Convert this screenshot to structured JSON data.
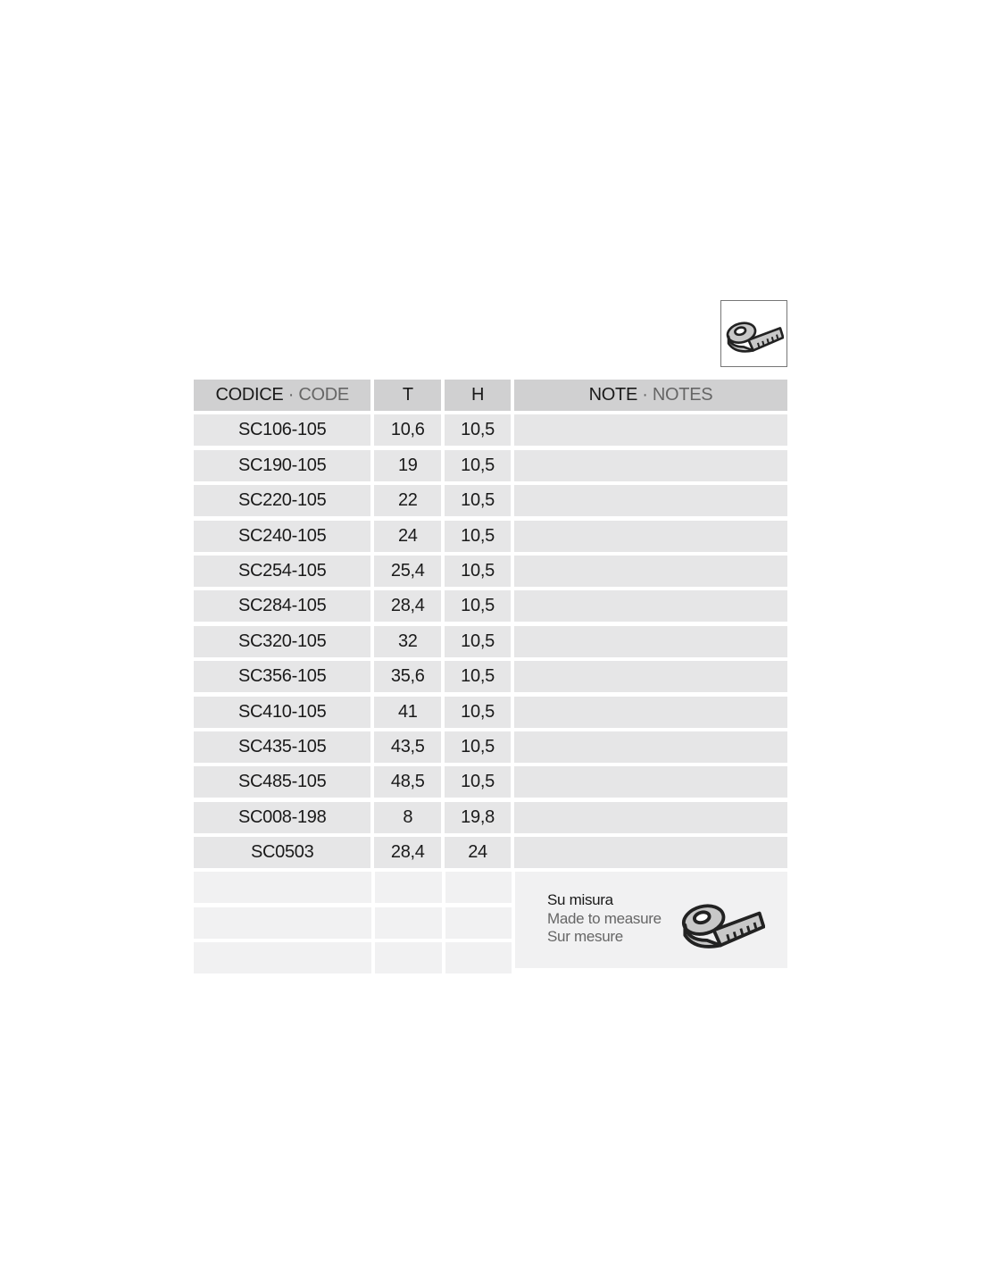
{
  "header_icon": "measuring-tape-icon",
  "table": {
    "headers": {
      "code_it": "CODICE",
      "code_sep": " · ",
      "code_en": "CODE",
      "t": "T",
      "h": "H",
      "note_it": "NOTE",
      "note_sep": " · ",
      "note_en": "NOTES"
    },
    "rows": [
      {
        "code": "SC106-105",
        "t": "10,6",
        "h": "10,5",
        "note": ""
      },
      {
        "code": "SC190-105",
        "t": "19",
        "h": "10,5",
        "note": ""
      },
      {
        "code": "SC220-105",
        "t": "22",
        "h": "10,5",
        "note": ""
      },
      {
        "code": "SC240-105",
        "t": "24",
        "h": "10,5",
        "note": ""
      },
      {
        "code": "SC254-105",
        "t": "25,4",
        "h": "10,5",
        "note": ""
      },
      {
        "code": "SC284-105",
        "t": "28,4",
        "h": "10,5",
        "note": ""
      },
      {
        "code": "SC320-105",
        "t": "32",
        "h": "10,5",
        "note": ""
      },
      {
        "code": "SC356-105",
        "t": "35,6",
        "h": "10,5",
        "note": ""
      },
      {
        "code": "SC410-105",
        "t": "41",
        "h": "10,5",
        "note": ""
      },
      {
        "code": "SC435-105",
        "t": "43,5",
        "h": "10,5",
        "note": ""
      },
      {
        "code": "SC485-105",
        "t": "48,5",
        "h": "10,5",
        "note": ""
      },
      {
        "code": "SC008-198",
        "t": "8",
        "h": "19,8",
        "note": ""
      },
      {
        "code": "SC0503",
        "t": "28,4",
        "h": "24",
        "note": ""
      }
    ],
    "made_to_measure": {
      "it": "Su misura",
      "en": "Made to measure",
      "fr": "Sur mesure",
      "icon": "measuring-tape-icon"
    }
  }
}
